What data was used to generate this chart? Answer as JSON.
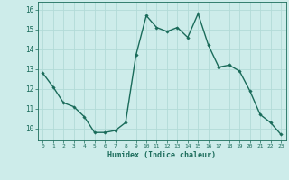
{
  "x": [
    0,
    1,
    2,
    3,
    4,
    5,
    6,
    7,
    8,
    9,
    10,
    11,
    12,
    13,
    14,
    15,
    16,
    17,
    18,
    19,
    20,
    21,
    22,
    23
  ],
  "y": [
    12.8,
    12.1,
    11.3,
    11.1,
    10.6,
    9.8,
    9.8,
    9.9,
    10.3,
    13.7,
    15.7,
    15.1,
    14.9,
    15.1,
    14.6,
    15.8,
    14.2,
    13.1,
    13.2,
    12.9,
    11.9,
    10.7,
    10.3,
    9.7
  ],
  "line_color": "#1a6b5a",
  "marker": "D",
  "marker_size": 1.8,
  "bg_color": "#cdecea",
  "grid_color": "#b2dbd7",
  "xlabel": "Humidex (Indice chaleur)",
  "ylabel_ticks": [
    10,
    11,
    12,
    13,
    14,
    15,
    16
  ],
  "xlim": [
    -0.5,
    23.5
  ],
  "ylim": [
    9.4,
    16.4
  ],
  "tick_color": "#1a6b5a",
  "label_color": "#1a6b5a",
  "linewidth": 1.0,
  "xtick_fontsize": 4.5,
  "ytick_fontsize": 5.5,
  "xlabel_fontsize": 6.0
}
